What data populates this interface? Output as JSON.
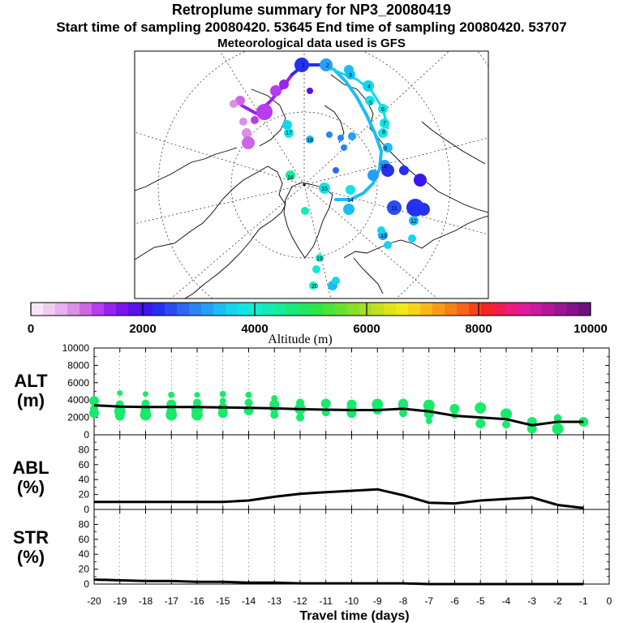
{
  "titles": {
    "line1": "Retroplume summary for NP3_20080419",
    "line2": "Start time of sampling 20080420. 53645     End time of sampling 20080420. 53707",
    "line3": "Meteorological data used is GFS"
  },
  "colorbar": {
    "label": "Altitude (m)",
    "tick_labels": [
      "0",
      "2000",
      "4000",
      "6000",
      "8000",
      "10000"
    ],
    "ticks": [
      0,
      2000,
      4000,
      6000,
      8000,
      10000
    ],
    "colors": [
      "#f7e6f7",
      "#f0cdf0",
      "#e8b0ec",
      "#dc8fe6",
      "#cc66e6",
      "#b83cf0",
      "#9a22ee",
      "#7a14ec",
      "#5a12e8",
      "#3a16ec",
      "#2630f0",
      "#2a4cf2",
      "#2c68f4",
      "#2a84f6",
      "#24a0f6",
      "#1cbcf4",
      "#16d4ee",
      "#12e4e6",
      "#10ecd0",
      "#12ecb4",
      "#14ec98",
      "#18ea7c",
      "#20e860",
      "#30e644",
      "#48e43a",
      "#68e030",
      "#88de28",
      "#a8de22",
      "#c4e01c",
      "#dee418",
      "#f0e818",
      "#f8d418",
      "#f8b818",
      "#f89c18",
      "#f88018",
      "#f86418",
      "#f84418",
      "#f42424",
      "#f01c50",
      "#ee1a7c",
      "#e01a9a",
      "#cc18a0",
      "#b4169a",
      "#9c1494",
      "#86128c",
      "#701080"
    ]
  },
  "chart_data": [
    {
      "type": "scatter",
      "panel": "ALT",
      "ylabel": "ALT\n(m)",
      "ylabel_lines": [
        "ALT",
        "(m)"
      ],
      "xlabel": "Travel time (days)",
      "xlim": [
        -20,
        0
      ],
      "ylim": [
        0,
        10000
      ],
      "yticks": [
        0,
        2000,
        4000,
        6000,
        8000,
        10000
      ],
      "ytick_labels": [
        "0",
        "2000",
        "4000",
        "6000",
        "8000",
        "10000"
      ],
      "mean_line": {
        "x": [
          -20,
          -19,
          -18,
          -17,
          -16,
          -15,
          -14,
          -13,
          -12,
          -11,
          -10,
          -9,
          -8,
          -7,
          -6,
          -5,
          -4,
          -3,
          -2,
          -1
        ],
        "y": [
          3400,
          3250,
          3200,
          3200,
          3200,
          3150,
          3100,
          3050,
          2950,
          2900,
          2850,
          2850,
          3000,
          2700,
          2200,
          2000,
          1800,
          1100,
          1500,
          1500
        ]
      },
      "cluster_points": {
        "x": [
          -20,
          -20,
          -20,
          -19,
          -19,
          -19,
          -19,
          -18,
          -18,
          -18,
          -18,
          -17,
          -17,
          -17,
          -17,
          -16,
          -16,
          -16,
          -16,
          -15,
          -15,
          -15,
          -15,
          -14,
          -14,
          -14,
          -13,
          -13,
          -13,
          -13,
          -12,
          -12,
          -12,
          -11,
          -11,
          -10,
          -10,
          -10,
          -9,
          -9,
          -8,
          -8,
          -8,
          -7,
          -7,
          -7,
          -7,
          -6,
          -6,
          -5,
          -5,
          -4,
          -4,
          -3,
          -3,
          -2,
          -2,
          -1
        ],
        "y": [
          3900,
          3000,
          2500,
          4800,
          3500,
          2700,
          2200,
          4700,
          3600,
          2800,
          2300,
          4600,
          3500,
          2700,
          2300,
          4600,
          3700,
          2900,
          2300,
          4700,
          3900,
          3100,
          2500,
          4600,
          3700,
          2800,
          4200,
          3500,
          3100,
          2300,
          3700,
          3000,
          2000,
          3600,
          2600,
          3500,
          3100,
          2500,
          3500,
          2900,
          3600,
          3300,
          2500,
          3400,
          3000,
          2400,
          1600,
          3000,
          2200,
          3100,
          1300,
          2400,
          1200,
          1500,
          700,
          1900,
          700,
          1500
        ],
        "size": [
          9,
          7,
          9,
          4,
          7,
          11,
          9,
          4,
          7,
          9,
          11,
          5,
          9,
          9,
          11,
          4,
          7,
          11,
          11,
          5,
          5,
          9,
          9,
          5,
          7,
          9,
          5,
          9,
          9,
          7,
          7,
          11,
          7,
          9,
          7,
          9,
          9,
          9,
          11,
          9,
          9,
          9,
          7,
          11,
          9,
          9,
          5,
          9,
          5,
          11,
          9,
          11,
          7,
          9,
          9,
          7,
          11,
          9
        ]
      }
    },
    {
      "type": "line",
      "panel": "ABL",
      "ylabel_lines": [
        "ABL",
        "(%)"
      ],
      "xlim": [
        -20,
        0
      ],
      "ylim": [
        0,
        100
      ],
      "yticks": [
        0,
        20,
        40,
        60,
        80
      ],
      "ytick_labels": [
        "0",
        "20",
        "40",
        "60",
        "80"
      ],
      "x": [
        -20,
        -19,
        -18,
        -17,
        -16,
        -15,
        -14,
        -13,
        -12,
        -11,
        -10,
        -9,
        -8,
        -7,
        -6,
        -5,
        -4,
        -3,
        -2,
        -1
      ],
      "y": [
        10,
        10,
        10,
        10,
        10,
        10,
        12,
        17,
        21,
        23,
        25,
        27,
        19,
        9,
        8,
        12,
        14,
        16,
        6,
        2
      ]
    },
    {
      "type": "line",
      "panel": "STR",
      "ylabel_lines": [
        "STR",
        "(%)"
      ],
      "xlim": [
        -20,
        0
      ],
      "ylim": [
        0,
        100
      ],
      "yticks": [
        0,
        20,
        40,
        60,
        80
      ],
      "ytick_labels": [
        "0",
        "20",
        "40",
        "60",
        "80"
      ],
      "xticks": [
        -20,
        -19,
        -18,
        -17,
        -16,
        -15,
        -14,
        -13,
        -12,
        -11,
        -10,
        -9,
        -8,
        -7,
        -6,
        -5,
        -4,
        -3,
        -2,
        -1,
        0
      ],
      "xtick_labels": [
        "-20",
        "-19",
        "-18",
        "-17",
        "-16",
        "-15",
        "-14",
        "-13",
        "-12",
        "-11",
        "-10",
        "-9",
        "-8",
        "-7",
        "-6",
        "-5",
        "-4",
        "-3",
        "-2",
        "-1",
        "0"
      ],
      "x": [
        -20,
        -19,
        -18,
        -17,
        -16,
        -15,
        -14,
        -13,
        -12,
        -11,
        -10,
        -9,
        -8,
        -7,
        -6,
        -5,
        -4,
        -3,
        -2,
        -1
      ],
      "y": [
        6,
        5,
        4,
        4,
        3,
        3,
        2,
        2,
        1,
        1,
        1,
        1,
        1,
        0,
        0,
        0,
        0,
        0,
        0,
        0
      ]
    }
  ],
  "map": {
    "label_day_markers": [
      "1",
      "2",
      "3",
      "4",
      "5",
      "6",
      "7",
      "8",
      "9",
      "10",
      "11",
      "12",
      "13",
      "14",
      "15",
      "16",
      "17",
      "18",
      "19",
      "20"
    ],
    "trajectory_colors": [
      "#9a22ee",
      "#2630f0",
      "#1cbcf4",
      "#16d4ee"
    ]
  }
}
